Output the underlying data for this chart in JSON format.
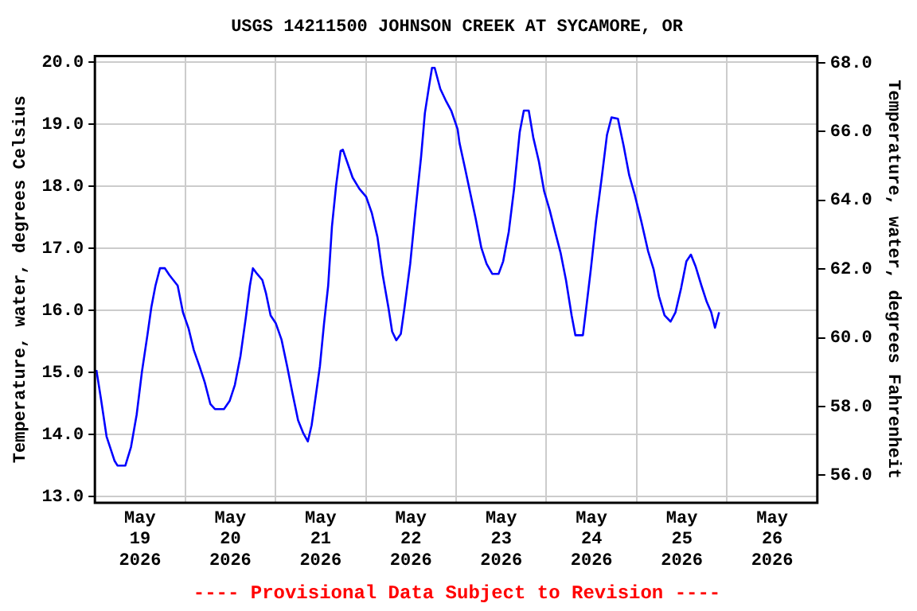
{
  "chart_data": {
    "type": "line",
    "title": "USGS 14211500 JOHNSON CREEK AT SYCAMORE, OR",
    "ylabel": "Temperature, water, degrees Celsius",
    "y2label": "Temperature, water, degrees Fahrenheit",
    "annotations": [
      "---- Provisional Data Subject to Revision ----"
    ],
    "xlim": [
      "2026-05-19T00:00",
      "2026-05-27T00:00"
    ],
    "xticks": [
      {
        "value": "2026-05-19T12:00",
        "label": "May 19 2026"
      },
      {
        "value": "2026-05-20T00:00",
        "label": null
      },
      {
        "value": "2026-05-20T12:00",
        "label": "May 20 2026"
      },
      {
        "value": "2026-05-21T00:00",
        "label": null
      },
      {
        "value": "2026-05-21T12:00",
        "label": "May 21 2026"
      },
      {
        "value": "2026-05-22T00:00",
        "label": null
      },
      {
        "value": "2026-05-22T12:00",
        "label": "May 22 2026"
      },
      {
        "value": "2026-05-23T00:00",
        "label": null
      },
      {
        "value": "2026-05-23T12:00",
        "label": "May 23 2026"
      },
      {
        "value": "2026-05-24T00:00",
        "label": null
      },
      {
        "value": "2026-05-24T12:00",
        "label": "May 24 2026"
      },
      {
        "value": "2026-05-25T00:00",
        "label": null
      },
      {
        "value": "2026-05-25T12:00",
        "label": "May 25 2026"
      },
      {
        "value": "2026-05-26T00:00",
        "label": null
      },
      {
        "value": "2026-05-26T12:00",
        "label": "May 26 2026"
      }
    ],
    "ylim": [
      12.9,
      20.1
    ],
    "yticks": [
      {
        "value": 13,
        "label": "13.0"
      },
      {
        "value": 14,
        "label": "14.0"
      },
      {
        "value": 15,
        "label": "15.0"
      },
      {
        "value": 16,
        "label": "16.0"
      },
      {
        "value": 17,
        "label": "17.0"
      },
      {
        "value": 18,
        "label": "18.0"
      },
      {
        "value": 19,
        "label": "19.0"
      },
      {
        "value": 20,
        "label": "20.0"
      }
    ],
    "y2lim": [
      55.2,
      68.2
    ],
    "y2ticks": [
      {
        "value": 56,
        "label": "56.0"
      },
      {
        "value": 58,
        "label": "58.0"
      },
      {
        "value": 60,
        "label": "60.0"
      },
      {
        "value": 62,
        "label": "62.0"
      },
      {
        "value": 64,
        "label": "64.0"
      },
      {
        "value": 66,
        "label": "66.0"
      },
      {
        "value": 68,
        "label": "68.0"
      }
    ],
    "grid": true,
    "marker": "none",
    "line_style": "solid",
    "x": [
      "2026-05-19T00:24",
      "2026-05-19T01:36",
      "2026-05-19T03:06",
      "2026-05-19T05:12",
      "2026-05-19T06:00",
      "2026-05-19T08:06",
      "2026-05-19T09:36",
      "2026-05-19T11:06",
      "2026-05-19T12:30",
      "2026-05-19T14:00",
      "2026-05-19T15:00",
      "2026-05-19T16:06",
      "2026-05-19T17:18",
      "2026-05-19T18:36",
      "2026-05-19T19:48",
      "2026-05-19T22:00",
      "2026-05-19T23:24",
      "2026-05-20T00:54",
      "2026-05-20T02:18",
      "2026-05-20T03:48",
      "2026-05-20T05:12",
      "2026-05-20T06:42",
      "2026-05-20T07:54",
      "2026-05-20T10:18",
      "2026-05-20T11:48",
      "2026-05-20T13:12",
      "2026-05-20T14:42",
      "2026-05-20T16:06",
      "2026-05-20T17:12",
      "2026-05-20T18:00",
      "2026-05-20T19:06",
      "2026-05-20T20:30",
      "2026-05-20T21:30",
      "2026-05-20T22:42",
      "2026-05-21T00:06",
      "2026-05-21T01:36",
      "2026-05-21T03:06",
      "2026-05-21T04:30",
      "2026-05-21T06:00",
      "2026-05-21T07:24",
      "2026-05-21T08:36",
      "2026-05-21T09:36",
      "2026-05-21T10:36",
      "2026-05-21T11:48",
      "2026-05-21T12:54",
      "2026-05-21T14:00",
      "2026-05-21T15:00",
      "2026-05-21T16:06",
      "2026-05-21T17:18",
      "2026-05-21T17:54",
      "2026-05-21T19:00",
      "2026-05-21T20:30",
      "2026-05-21T22:18",
      "2026-05-22T00:06",
      "2026-05-22T01:36",
      "2026-05-22T03:06",
      "2026-05-22T04:30",
      "2026-05-22T06:00",
      "2026-05-22T07:00",
      "2026-05-22T08:06",
      "2026-05-22T09:18",
      "2026-05-22T10:18",
      "2026-05-22T11:48",
      "2026-05-22T13:12",
      "2026-05-22T14:42",
      "2026-05-22T15:42",
      "2026-05-22T16:54",
      "2026-05-22T17:36",
      "2026-05-22T18:18",
      "2026-05-22T19:48",
      "2026-05-22T21:12",
      "2026-05-22T22:42",
      "2026-05-23T00:24",
      "2026-05-23T00:54",
      "2026-05-23T02:18",
      "2026-05-23T03:48",
      "2026-05-23T05:12",
      "2026-05-23T06:42",
      "2026-05-23T08:06",
      "2026-05-23T09:36",
      "2026-05-23T11:18",
      "2026-05-23T12:30",
      "2026-05-23T14:00",
      "2026-05-23T15:24",
      "2026-05-23T16:54",
      "2026-05-23T18:00",
      "2026-05-23T19:18",
      "2026-05-23T20:30",
      "2026-05-23T22:00",
      "2026-05-23T23:24",
      "2026-05-24T00:54",
      "2026-05-24T02:18",
      "2026-05-24T03:48",
      "2026-05-24T05:12",
      "2026-05-24T06:42",
      "2026-05-24T07:42",
      "2026-05-24T09:42",
      "2026-05-24T10:36",
      "2026-05-24T11:48",
      "2026-05-24T13:12",
      "2026-05-24T14:42",
      "2026-05-24T16:06",
      "2026-05-24T17:18",
      "2026-05-24T19:00",
      "2026-05-24T20:30",
      "2026-05-24T22:00",
      "2026-05-24T23:24",
      "2026-05-25T01:12",
      "2026-05-25T03:00",
      "2026-05-25T04:30",
      "2026-05-25T05:54",
      "2026-05-25T07:24",
      "2026-05-25T09:00",
      "2026-05-25T10:18",
      "2026-05-25T11:48",
      "2026-05-25T13:12",
      "2026-05-25T14:24",
      "2026-05-25T15:42",
      "2026-05-25T17:12",
      "2026-05-25T18:36",
      "2026-05-25T19:48",
      "2026-05-25T20:48",
      "2026-05-25T21:54"
    ],
    "series": [
      {
        "color": "#0000ff",
        "values": [
          15.04,
          14.58,
          13.97,
          13.58,
          13.5,
          13.5,
          13.8,
          14.32,
          15.01,
          15.62,
          16.05,
          16.4,
          16.68,
          16.68,
          16.57,
          16.4,
          15.97,
          15.71,
          15.36,
          15.1,
          14.84,
          14.49,
          14.41,
          14.41,
          14.54,
          14.8,
          15.27,
          15.88,
          16.4,
          16.68,
          16.59,
          16.49,
          16.27,
          15.92,
          15.79,
          15.53,
          15.1,
          14.67,
          14.23,
          14.02,
          13.89,
          14.15,
          14.58,
          15.1,
          15.79,
          16.4,
          17.35,
          18.01,
          18.57,
          18.59,
          18.4,
          18.14,
          17.96,
          17.83,
          17.57,
          17.18,
          16.57,
          16.05,
          15.66,
          15.52,
          15.62,
          16.05,
          16.75,
          17.61,
          18.48,
          19.18,
          19.65,
          19.91,
          19.91,
          19.57,
          19.39,
          19.22,
          18.92,
          18.7,
          18.31,
          17.88,
          17.48,
          17.01,
          16.75,
          16.59,
          16.59,
          16.79,
          17.27,
          17.96,
          18.87,
          19.22,
          19.22,
          18.79,
          18.4,
          17.92,
          17.61,
          17.27,
          16.92,
          16.49,
          15.92,
          15.6,
          15.6,
          16.05,
          16.66,
          17.44,
          18.14,
          18.83,
          19.11,
          19.09,
          18.66,
          18.18,
          17.88,
          17.44,
          16.96,
          16.66,
          16.23,
          15.92,
          15.82,
          15.97,
          16.36,
          16.79,
          16.9,
          16.7,
          16.4,
          16.14,
          15.97,
          15.72,
          15.97
        ]
      }
    ]
  }
}
